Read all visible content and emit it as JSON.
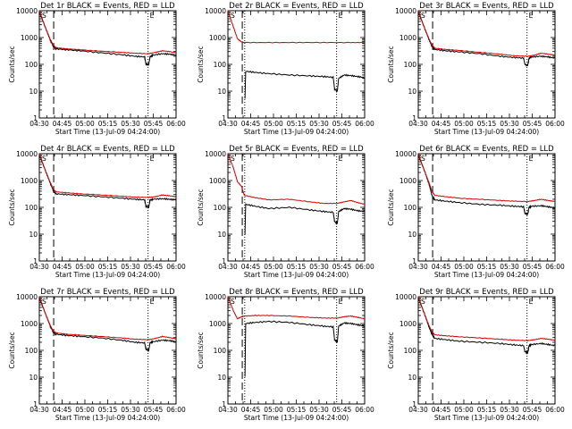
{
  "colors": {
    "events": "#000000",
    "lld": "#cc0000"
  },
  "chart_data": [
    {
      "type": "line",
      "title": "Det 1r BLACK = Events, RED = LLD",
      "corner_labels": [
        "S",
        "E"
      ],
      "xlabel": "Start Time (13-Jul-09 04:24:00)",
      "ylabel": "Counts/sec",
      "log_y": true,
      "ylim": [
        1,
        10000
      ],
      "x_ticks": [
        "04:30",
        "04:45",
        "05:00",
        "05:15",
        "05:30",
        "05:45",
        "06:00"
      ],
      "y_ticks": [
        "1",
        "10",
        "100",
        "1000",
        "10000"
      ],
      "markers": {
        "dashed": 0.105,
        "dotted_1": 0.795
      },
      "series": [
        {
          "name": "BLACK = Events",
          "x": [
            0,
            0.05,
            0.08,
            0.1,
            0.12,
            0.2,
            0.3,
            0.45,
            0.6,
            0.7,
            0.77,
            0.78,
            0.8,
            0.81,
            0.83,
            0.9,
            0.95,
            1
          ],
          "y": [
            9000,
            2000,
            800,
            500,
            380,
            350,
            320,
            270,
            230,
            200,
            190,
            100,
            100,
            190,
            220,
            250,
            240,
            220
          ]
        },
        {
          "name": "RED = LLD",
          "x": [
            0,
            0.05,
            0.08,
            0.1,
            0.12,
            0.2,
            0.3,
            0.45,
            0.6,
            0.7,
            0.8,
            0.85,
            0.9,
            0.95,
            1
          ],
          "y": [
            10000,
            2000,
            850,
            550,
            420,
            380,
            350,
            310,
            280,
            260,
            250,
            280,
            320,
            300,
            270
          ]
        }
      ]
    },
    {
      "type": "line",
      "title": "Det 2r BLACK = Events, RED = LLD",
      "corner_labels": [
        "S",
        "E"
      ],
      "xlabel": "Start Time (13-Jul-09 04:24:00)",
      "ylabel": "Counts/sec",
      "log_y": true,
      "ylim": [
        1,
        10000
      ],
      "x_ticks": [
        "04:30",
        "04:45",
        "05:00",
        "05:15",
        "05:30",
        "05:45",
        "06:00"
      ],
      "y_ticks": [
        "1",
        "10",
        "100",
        "1000",
        "10000"
      ],
      "markers": {
        "dashed": 0.105,
        "dotted_1": 0.123,
        "dotted_2": 0.795
      },
      "series": [
        {
          "name": "BLACK = Events",
          "x": [
            0.125,
            0.13,
            0.2,
            0.3,
            0.45,
            0.6,
            0.7,
            0.77,
            0.78,
            0.8,
            0.81,
            0.85,
            0.9,
            0.95,
            1
          ],
          "y": [
            5,
            55,
            50,
            45,
            40,
            37,
            35,
            33,
            12,
            10,
            30,
            40,
            38,
            35,
            32
          ]
        },
        {
          "name": "RED = LLD",
          "x": [
            0,
            0.04,
            0.07,
            0.1,
            0.12,
            0.3,
            0.5,
            0.7,
            0.9,
            1
          ],
          "y": [
            10000,
            2500,
            900,
            680,
            650,
            650,
            650,
            650,
            650,
            650
          ]
        }
      ]
    },
    {
      "type": "line",
      "title": "Det 3r BLACK = Events, RED = LLD",
      "corner_labels": [
        "S",
        "E"
      ],
      "xlabel": "Start Time (13-Jul-09 04:24:00)",
      "ylabel": "Counts/sec",
      "log_y": true,
      "ylim": [
        1,
        10000
      ],
      "x_ticks": [
        "04:30",
        "04:45",
        "05:00",
        "05:15",
        "05:30",
        "05:45",
        "06:00"
      ],
      "y_ticks": [
        "1",
        "10",
        "100",
        "1000",
        "10000"
      ],
      "markers": {
        "dashed": 0.105,
        "dotted_1": 0.795
      },
      "series": [
        {
          "name": "BLACK = Events",
          "x": [
            0,
            0.05,
            0.08,
            0.1,
            0.12,
            0.2,
            0.3,
            0.45,
            0.6,
            0.7,
            0.77,
            0.78,
            0.8,
            0.81,
            0.83,
            0.9,
            0.95,
            1
          ],
          "y": [
            9000,
            2000,
            800,
            480,
            360,
            320,
            290,
            250,
            200,
            180,
            170,
            100,
            90,
            170,
            190,
            200,
            190,
            170
          ]
        },
        {
          "name": "RED = LLD",
          "x": [
            0,
            0.05,
            0.08,
            0.1,
            0.12,
            0.2,
            0.3,
            0.45,
            0.6,
            0.7,
            0.8,
            0.85,
            0.9,
            0.95,
            1
          ],
          "y": [
            10000,
            2000,
            850,
            520,
            400,
            360,
            330,
            280,
            240,
            210,
            200,
            220,
            260,
            240,
            220
          ]
        }
      ]
    },
    {
      "type": "line",
      "title": "Det 4r BLACK = Events, RED = LLD",
      "corner_labels": [
        "S",
        "E"
      ],
      "xlabel": "Start Time (13-Jul-09 04:24:00)",
      "ylabel": "Counts/sec",
      "log_y": true,
      "ylim": [
        1,
        10000
      ],
      "x_ticks": [
        "04:30",
        "04:45",
        "05:00",
        "05:15",
        "05:30",
        "05:45",
        "06:00"
      ],
      "y_ticks": [
        "1",
        "10",
        "100",
        "1000",
        "10000"
      ],
      "markers": {
        "dashed": 0.105,
        "dotted_1": 0.795
      },
      "series": [
        {
          "name": "BLACK = Events",
          "x": [
            0,
            0.05,
            0.08,
            0.1,
            0.12,
            0.2,
            0.3,
            0.45,
            0.6,
            0.7,
            0.77,
            0.78,
            0.8,
            0.81,
            0.83,
            0.9,
            0.95,
            1
          ],
          "y": [
            9000,
            2000,
            800,
            450,
            320,
            300,
            280,
            250,
            220,
            200,
            190,
            110,
            100,
            190,
            200,
            210,
            200,
            190
          ]
        },
        {
          "name": "RED = LLD",
          "x": [
            0,
            0.05,
            0.08,
            0.1,
            0.12,
            0.2,
            0.3,
            0.45,
            0.6,
            0.7,
            0.8,
            0.85,
            0.9,
            0.95,
            1
          ],
          "y": [
            10000,
            2000,
            850,
            500,
            380,
            350,
            320,
            290,
            260,
            240,
            235,
            250,
            290,
            270,
            250
          ]
        }
      ]
    },
    {
      "type": "line",
      "title": "Det 5r BLACK = Events, RED = LLD",
      "corner_labels": [
        "S",
        "E"
      ],
      "xlabel": "Start Time (13-Jul-09 04:24:00)",
      "ylabel": "Counts/sec",
      "log_y": true,
      "ylim": [
        1,
        10000
      ],
      "x_ticks": [
        "04:30",
        "04:45",
        "05:00",
        "05:15",
        "05:30",
        "05:45",
        "06:00"
      ],
      "y_ticks": [
        "1",
        "10",
        "100",
        "1000",
        "10000"
      ],
      "markers": {
        "dashed": 0.105,
        "dotted_1": 0.123,
        "dotted_2": 0.795
      },
      "series": [
        {
          "name": "BLACK = Events",
          "x": [
            0.125,
            0.13,
            0.2,
            0.3,
            0.45,
            0.6,
            0.7,
            0.77,
            0.78,
            0.8,
            0.81,
            0.85,
            0.9,
            0.95,
            1
          ],
          "y": [
            10,
            130,
            110,
            90,
            100,
            80,
            70,
            65,
            30,
            25,
            70,
            90,
            85,
            75,
            70
          ]
        },
        {
          "name": "RED = LLD",
          "x": [
            0,
            0.04,
            0.07,
            0.1,
            0.12,
            0.2,
            0.3,
            0.45,
            0.6,
            0.7,
            0.8,
            0.85,
            0.9,
            0.95,
            1
          ],
          "y": [
            10000,
            3000,
            900,
            600,
            280,
            230,
            190,
            200,
            160,
            140,
            140,
            160,
            180,
            150,
            130
          ]
        }
      ]
    },
    {
      "type": "line",
      "title": "Det 6r BLACK = Events, RED = LLD",
      "corner_labels": [
        "S",
        "E"
      ],
      "xlabel": "Start Time (13-Jul-09 04:24:00)",
      "ylabel": "Counts/sec",
      "log_y": true,
      "ylim": [
        1,
        10000
      ],
      "x_ticks": [
        "04:30",
        "04:45",
        "05:00",
        "05:15",
        "05:30",
        "05:45",
        "06:00"
      ],
      "y_ticks": [
        "1",
        "10",
        "100",
        "1000",
        "10000"
      ],
      "markers": {
        "dashed": 0.105,
        "dotted_1": 0.795
      },
      "series": [
        {
          "name": "BLACK = Events",
          "x": [
            0,
            0.05,
            0.08,
            0.1,
            0.12,
            0.2,
            0.3,
            0.45,
            0.6,
            0.7,
            0.77,
            0.78,
            0.8,
            0.81,
            0.83,
            0.9,
            0.95,
            1
          ],
          "y": [
            9000,
            2000,
            700,
            280,
            190,
            170,
            150,
            130,
            120,
            110,
            105,
            60,
            55,
            100,
            110,
            115,
            105,
            95
          ]
        },
        {
          "name": "RED = LLD",
          "x": [
            0,
            0.05,
            0.08,
            0.1,
            0.12,
            0.2,
            0.3,
            0.45,
            0.6,
            0.7,
            0.8,
            0.85,
            0.9,
            0.95,
            1
          ],
          "y": [
            10000,
            2000,
            800,
            400,
            280,
            250,
            220,
            200,
            180,
            170,
            165,
            180,
            200,
            180,
            165
          ]
        }
      ]
    },
    {
      "type": "line",
      "title": "Det 7r BLACK = Events, RED = LLD",
      "corner_labels": [
        "S",
        "E"
      ],
      "xlabel": "Start Time (13-Jul-09 04:24:00)",
      "ylabel": "Counts/sec",
      "log_y": true,
      "ylim": [
        1,
        10000
      ],
      "x_ticks": [
        "04:30",
        "04:45",
        "05:00",
        "05:15",
        "05:30",
        "05:45",
        "06:00"
      ],
      "y_ticks": [
        "1",
        "10",
        "100",
        "1000",
        "10000"
      ],
      "markers": {
        "dashed": 0.105,
        "dotted_1": 0.795
      },
      "series": [
        {
          "name": "BLACK = Events",
          "x": [
            0,
            0.05,
            0.08,
            0.1,
            0.12,
            0.2,
            0.3,
            0.45,
            0.6,
            0.7,
            0.77,
            0.78,
            0.8,
            0.81,
            0.83,
            0.9,
            0.95,
            1
          ],
          "y": [
            9000,
            2000,
            800,
            500,
            400,
            360,
            330,
            290,
            240,
            200,
            190,
            110,
            100,
            190,
            210,
            240,
            230,
            210
          ]
        },
        {
          "name": "RED = LLD",
          "x": [
            0,
            0.05,
            0.08,
            0.1,
            0.12,
            0.2,
            0.3,
            0.45,
            0.6,
            0.7,
            0.8,
            0.85,
            0.9,
            0.95,
            1
          ],
          "y": [
            10000,
            2000,
            850,
            550,
            450,
            400,
            370,
            330,
            290,
            260,
            250,
            280,
            330,
            300,
            270
          ]
        }
      ]
    },
    {
      "type": "line",
      "title": "Det 8r BLACK = Events, RED = LLD",
      "corner_labels": [
        "S",
        "E"
      ],
      "xlabel": "Start Time (13-Jul-09 04:24:00)",
      "ylabel": "Counts/sec",
      "log_y": true,
      "ylim": [
        1,
        10000
      ],
      "x_ticks": [
        "04:30",
        "04:45",
        "05:00",
        "05:15",
        "05:30",
        "05:45",
        "06:00"
      ],
      "y_ticks": [
        "1",
        "10",
        "100",
        "1000",
        "10000"
      ],
      "markers": {
        "dashed": 0.105,
        "dotted_1": 0.123,
        "dotted_2": 0.795
      },
      "series": [
        {
          "name": "BLACK = Events",
          "x": [
            0.125,
            0.13,
            0.2,
            0.3,
            0.45,
            0.6,
            0.7,
            0.77,
            0.78,
            0.8,
            0.81,
            0.85,
            0.9,
            0.95,
            1
          ],
          "y": [
            10,
            1000,
            1100,
            1200,
            1100,
            900,
            800,
            750,
            250,
            200,
            800,
            1050,
            1000,
            900,
            800
          ]
        },
        {
          "name": "RED = LLD",
          "x": [
            0,
            0.04,
            0.07,
            0.1,
            0.12,
            0.2,
            0.3,
            0.45,
            0.6,
            0.7,
            0.8,
            0.85,
            0.9,
            0.95,
            1
          ],
          "y": [
            10000,
            3000,
            1500,
            1800,
            1900,
            2000,
            2000,
            1900,
            1700,
            1600,
            1600,
            1800,
            1900,
            1700,
            1500
          ]
        }
      ]
    },
    {
      "type": "line",
      "title": "Det 9r BLACK = Events, RED = LLD",
      "corner_labels": [
        "S",
        "E"
      ],
      "xlabel": "Start Time (13-Jul-09 04:24:00)",
      "ylabel": "Counts/sec",
      "log_y": true,
      "ylim": [
        1,
        10000
      ],
      "x_ticks": [
        "04:30",
        "04:45",
        "05:00",
        "05:15",
        "05:30",
        "05:45",
        "06:00"
      ],
      "y_ticks": [
        "1",
        "10",
        "100",
        "1000",
        "10000"
      ],
      "markers": {
        "dashed": 0.105,
        "dotted_1": 0.795
      },
      "series": [
        {
          "name": "BLACK = Events",
          "x": [
            0,
            0.05,
            0.08,
            0.1,
            0.12,
            0.2,
            0.3,
            0.45,
            0.6,
            0.7,
            0.77,
            0.78,
            0.8,
            0.81,
            0.83,
            0.9,
            0.95,
            1
          ],
          "y": [
            9000,
            2000,
            700,
            400,
            280,
            250,
            220,
            200,
            180,
            160,
            150,
            90,
            80,
            150,
            165,
            180,
            165,
            150
          ]
        },
        {
          "name": "RED = LLD",
          "x": [
            0,
            0.05,
            0.08,
            0.1,
            0.12,
            0.2,
            0.3,
            0.45,
            0.6,
            0.7,
            0.8,
            0.85,
            0.9,
            0.95,
            1
          ],
          "y": [
            10000,
            2000,
            800,
            500,
            380,
            350,
            320,
            290,
            260,
            240,
            230,
            250,
            280,
            260,
            240
          ]
        }
      ]
    }
  ]
}
